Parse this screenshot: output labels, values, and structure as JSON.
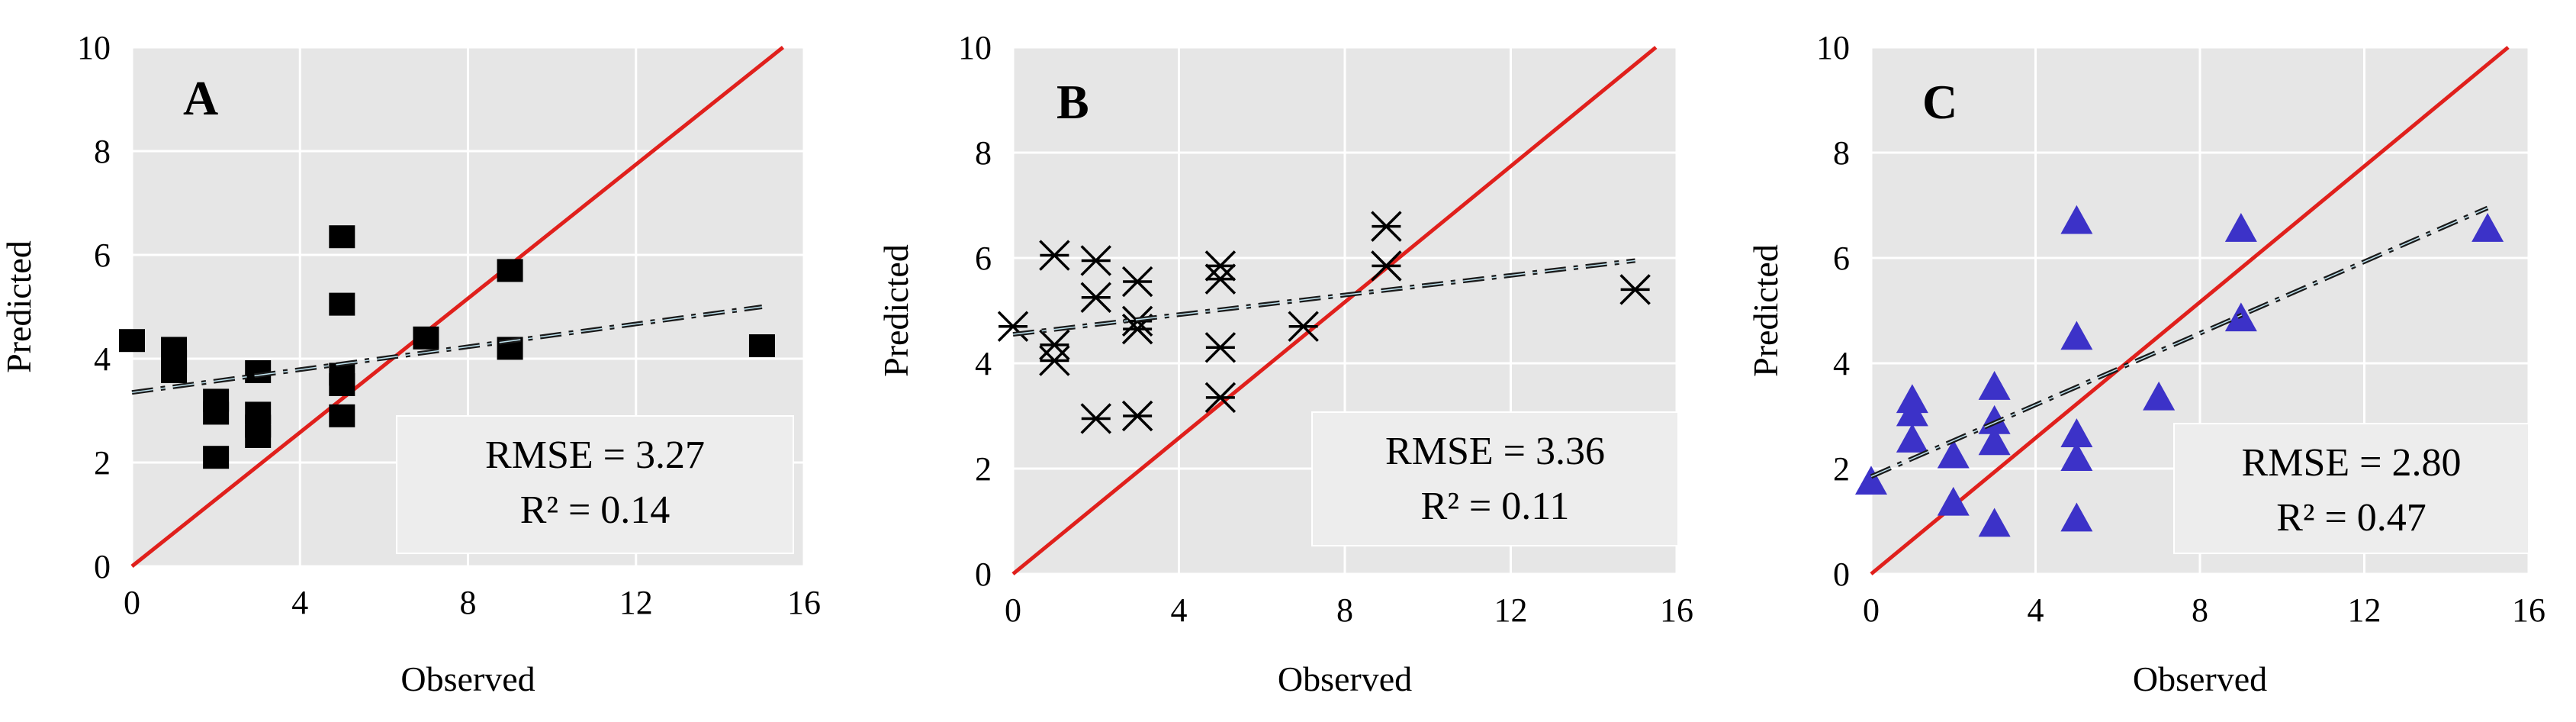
{
  "chart_data": [
    {
      "type": "scatter",
      "panel_label": "A",
      "xlabel": "Observed",
      "ylabel": "Predicted",
      "xlim": [
        0,
        16
      ],
      "ylim": [
        0,
        10
      ],
      "xticks": [
        "0",
        "4",
        "8",
        "12",
        "16"
      ],
      "yticks": [
        "0",
        "2",
        "4",
        "6",
        "8",
        "10"
      ],
      "marker": "square",
      "marker_color": "#000000",
      "points": [
        [
          0,
          4.35
        ],
        [
          1,
          4.2
        ],
        [
          1,
          3.95
        ],
        [
          1,
          3.75
        ],
        [
          2,
          3.2
        ],
        [
          2,
          2.95
        ],
        [
          2,
          2.1
        ],
        [
          3,
          3.75
        ],
        [
          3,
          2.95
        ],
        [
          3,
          2.7
        ],
        [
          3,
          2.5
        ],
        [
          5,
          6.35
        ],
        [
          5,
          5.05
        ],
        [
          5,
          3.7
        ],
        [
          5,
          3.5
        ],
        [
          5,
          2.9
        ],
        [
          7,
          4.4
        ],
        [
          9,
          5.7
        ],
        [
          9,
          4.2
        ],
        [
          15,
          4.25
        ]
      ],
      "trend_line": {
        "x": [
          0,
          15
        ],
        "y": [
          3.35,
          5.0
        ]
      },
      "one_to_one": {
        "x": [
          0,
          15.5
        ],
        "y": [
          0,
          10
        ]
      },
      "rmse": "RMSE = 3.27",
      "r2": "R² = 0.14"
    },
    {
      "type": "scatter",
      "panel_label": "B",
      "xlabel": "Observed",
      "ylabel": "Predicted",
      "xlim": [
        0,
        16
      ],
      "ylim": [
        0,
        10
      ],
      "xticks": [
        "0",
        "4",
        "8",
        "12",
        "16"
      ],
      "yticks": [
        "0",
        "2",
        "4",
        "6",
        "8",
        "10"
      ],
      "marker": "asterisk",
      "marker_color": "#000000",
      "points": [
        [
          0,
          4.7
        ],
        [
          1,
          6.05
        ],
        [
          1,
          4.35
        ],
        [
          1,
          4.05
        ],
        [
          2,
          5.95
        ],
        [
          2,
          5.25
        ],
        [
          2,
          2.95
        ],
        [
          3,
          5.55
        ],
        [
          3,
          4.8
        ],
        [
          3,
          4.65
        ],
        [
          3,
          3.0
        ],
        [
          5,
          5.85
        ],
        [
          5,
          5.6
        ],
        [
          5,
          4.3
        ],
        [
          5,
          3.35
        ],
        [
          7,
          4.7
        ],
        [
          9,
          6.6
        ],
        [
          9,
          5.85
        ],
        [
          15,
          5.4
        ]
      ],
      "trend_line": {
        "x": [
          0,
          15
        ],
        "y": [
          4.55,
          5.95
        ]
      },
      "one_to_one": {
        "x": [
          0,
          15.5
        ],
        "y": [
          0,
          10
        ]
      },
      "rmse": "RMSE = 3.36",
      "r2": "R² = 0.11"
    },
    {
      "type": "scatter",
      "panel_label": "C",
      "xlabel": "Observed",
      "ylabel": "Predicted",
      "xlim": [
        0,
        16
      ],
      "ylim": [
        0,
        10
      ],
      "xticks": [
        "0",
        "4",
        "8",
        "12",
        "16"
      ],
      "yticks": [
        "0",
        "2",
        "4",
        "6",
        "8",
        "10"
      ],
      "marker": "triangle",
      "marker_color": "#3c32c8",
      "points": [
        [
          0,
          1.75
        ],
        [
          1,
          3.3
        ],
        [
          1,
          3.05
        ],
        [
          1,
          2.55
        ],
        [
          2,
          2.25
        ],
        [
          2,
          1.35
        ],
        [
          3,
          3.55
        ],
        [
          3,
          2.9
        ],
        [
          3,
          2.5
        ],
        [
          3,
          0.95
        ],
        [
          5,
          6.7
        ],
        [
          5,
          4.5
        ],
        [
          5,
          2.65
        ],
        [
          5,
          2.2
        ],
        [
          5,
          1.05
        ],
        [
          7,
          3.35
        ],
        [
          9,
          6.55
        ],
        [
          9,
          4.85
        ],
        [
          15,
          6.55
        ]
      ],
      "trend_line": {
        "x": [
          0,
          15
        ],
        "y": [
          1.85,
          6.95
        ]
      },
      "one_to_one": {
        "x": [
          0,
          15.5
        ],
        "y": [
          0,
          10
        ]
      },
      "rmse": "RMSE = 2.80",
      "r2": "R² = 0.47"
    }
  ],
  "colors": {
    "plot_background": "#e6e6e6",
    "gridline": "#ffffff",
    "one_to_one_line": "#e0201c",
    "trend_line_dark": "#1a1a1a",
    "trend_line_light": "#bfe3ef",
    "stat_box": "#ededed"
  }
}
